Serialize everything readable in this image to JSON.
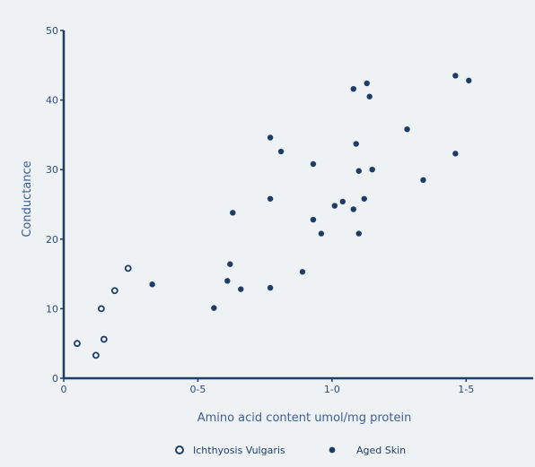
{
  "colors": {
    "axis": "#1e3d66",
    "marker": "#1e3d66",
    "axis_title": "#3b5f96",
    "background": "#eef2f5"
  },
  "chart_data": {
    "type": "scatter",
    "xlabel": "Amino acid content umol/mg protein",
    "ylabel": "Conductance",
    "xlim": [
      0,
      1.75
    ],
    "ylim": [
      0,
      50
    ],
    "x_ticks": [
      {
        "value": 0,
        "label": "0"
      },
      {
        "value": 0.5,
        "label": "0-5"
      },
      {
        "value": 1.0,
        "label": "1-0"
      },
      {
        "value": 1.5,
        "label": "1-5"
      }
    ],
    "y_ticks": [
      {
        "value": 0,
        "label": "0"
      },
      {
        "value": 10,
        "label": "10"
      },
      {
        "value": 20,
        "label": "20"
      },
      {
        "value": 30,
        "label": "30"
      },
      {
        "value": 40,
        "label": "40"
      },
      {
        "value": 50,
        "label": "50"
      }
    ],
    "grid": false,
    "legend_position": "bottom",
    "series": [
      {
        "name": "Ichthyosis Vulgaris",
        "marker": "hollow-circle",
        "points": [
          {
            "x": 0.05,
            "y": 5.0
          },
          {
            "x": 0.12,
            "y": 3.3
          },
          {
            "x": 0.14,
            "y": 10.0
          },
          {
            "x": 0.15,
            "y": 5.6
          },
          {
            "x": 0.19,
            "y": 12.6
          },
          {
            "x": 0.24,
            "y": 15.8
          }
        ]
      },
      {
        "name": "Aged Skin",
        "marker": "filled-circle",
        "points": [
          {
            "x": 0.33,
            "y": 13.5
          },
          {
            "x": 0.56,
            "y": 10.1
          },
          {
            "x": 0.61,
            "y": 14.0
          },
          {
            "x": 0.62,
            "y": 16.4
          },
          {
            "x": 0.63,
            "y": 23.8
          },
          {
            "x": 0.66,
            "y": 12.8
          },
          {
            "x": 0.77,
            "y": 13.0
          },
          {
            "x": 0.77,
            "y": 25.8
          },
          {
            "x": 0.77,
            "y": 34.6
          },
          {
            "x": 0.81,
            "y": 32.6
          },
          {
            "x": 0.89,
            "y": 15.3
          },
          {
            "x": 0.93,
            "y": 30.8
          },
          {
            "x": 0.93,
            "y": 22.8
          },
          {
            "x": 0.96,
            "y": 20.8
          },
          {
            "x": 1.01,
            "y": 24.8
          },
          {
            "x": 1.04,
            "y": 25.4
          },
          {
            "x": 1.08,
            "y": 24.3
          },
          {
            "x": 1.08,
            "y": 41.6
          },
          {
            "x": 1.09,
            "y": 33.7
          },
          {
            "x": 1.1,
            "y": 29.8
          },
          {
            "x": 1.1,
            "y": 20.8
          },
          {
            "x": 1.12,
            "y": 25.8
          },
          {
            "x": 1.13,
            "y": 42.4
          },
          {
            "x": 1.14,
            "y": 40.5
          },
          {
            "x": 1.15,
            "y": 30.0
          },
          {
            "x": 1.28,
            "y": 35.8
          },
          {
            "x": 1.34,
            "y": 28.5
          },
          {
            "x": 1.46,
            "y": 32.3
          },
          {
            "x": 1.46,
            "y": 43.5
          },
          {
            "x": 1.51,
            "y": 42.8
          }
        ]
      }
    ]
  }
}
